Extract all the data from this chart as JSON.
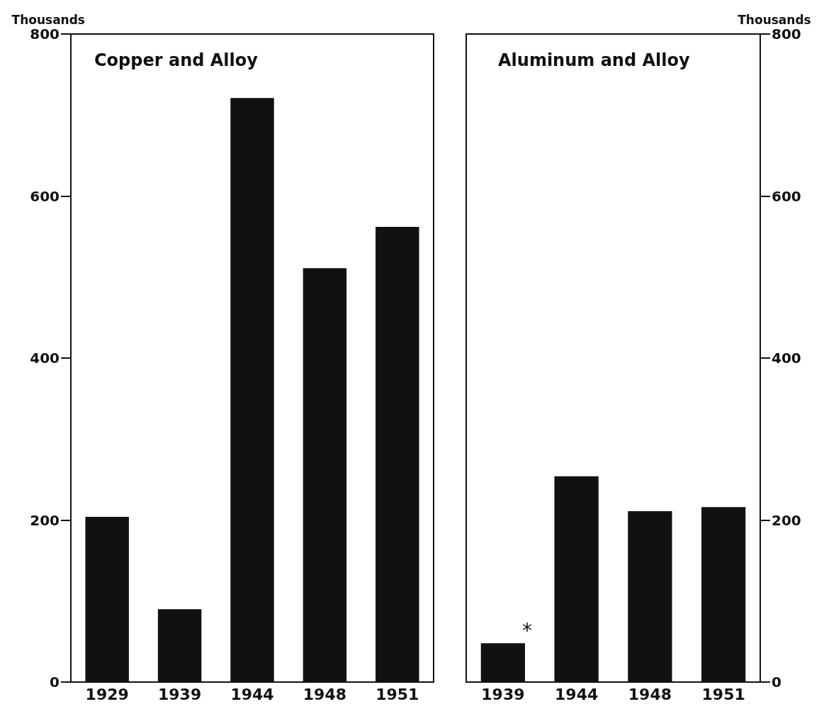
{
  "chart_data": [
    {
      "type": "bar",
      "title": "Copper and Alloy",
      "ylabel": "Thousands",
      "categories": [
        "1929",
        "1939",
        "1944",
        "1948",
        "1951"
      ],
      "values": [
        204,
        90,
        721,
        511,
        562
      ],
      "color": "#111111",
      "ylim": [
        0,
        800
      ],
      "yticks": [
        0,
        200,
        400,
        600,
        800
      ],
      "grid": false
    },
    {
      "type": "bar",
      "title": "Aluminum and Alloy",
      "y2label": "Thousands",
      "categories": [
        "1939",
        "1944",
        "1948",
        "1951"
      ],
      "series": [
        {
          "values": [
            48,
            254,
            211,
            216
          ],
          "color": "#111111",
          "axis": "y2"
        }
      ],
      "y2lim": [
        0,
        800
      ],
      "y2ticks": [
        0,
        200,
        400,
        600,
        800
      ],
      "grid": false,
      "annotations": [
        "*"
      ]
    }
  ]
}
